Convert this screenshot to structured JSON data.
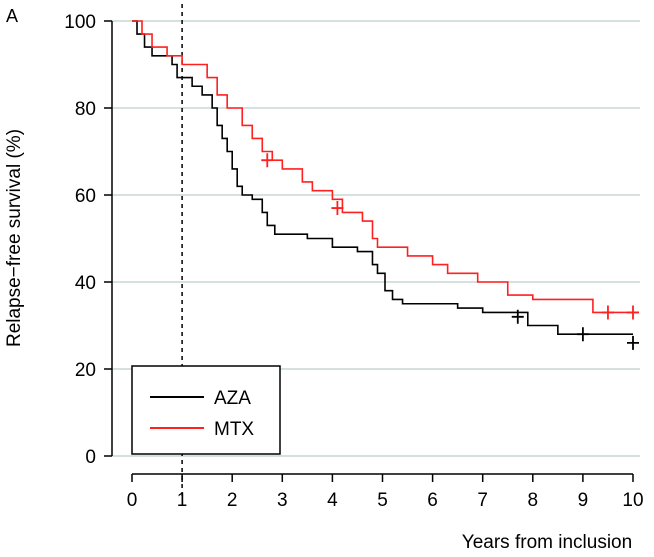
{
  "panel_letter": "A",
  "chart_data": {
    "type": "line",
    "step": true,
    "xlabel": "Years from inclusion",
    "ylabel": "Relapse−free survival (%)",
    "xlim": [
      0,
      10
    ],
    "ylim": [
      0,
      100
    ],
    "x_ticks": [
      0,
      1,
      2,
      3,
      4,
      5,
      6,
      7,
      8,
      9,
      10
    ],
    "y_ticks": [
      0,
      20,
      40,
      60,
      80,
      100
    ],
    "grid": "horizontal",
    "reference_line_x": 1,
    "legend_position": "bottom-left",
    "series": [
      {
        "name": "AZA",
        "color": "#000000",
        "points": [
          [
            0,
            100
          ],
          [
            0.1,
            97
          ],
          [
            0.25,
            94
          ],
          [
            0.4,
            92
          ],
          [
            0.8,
            90
          ],
          [
            0.9,
            87
          ],
          [
            1.2,
            85
          ],
          [
            1.4,
            83
          ],
          [
            1.6,
            80
          ],
          [
            1.7,
            76
          ],
          [
            1.8,
            73
          ],
          [
            1.9,
            70
          ],
          [
            2.0,
            66
          ],
          [
            2.1,
            62
          ],
          [
            2.2,
            60
          ],
          [
            2.4,
            59
          ],
          [
            2.6,
            56
          ],
          [
            2.7,
            53
          ],
          [
            2.85,
            51
          ],
          [
            3.5,
            50
          ],
          [
            4.0,
            48
          ],
          [
            4.5,
            47
          ],
          [
            4.8,
            44
          ],
          [
            4.9,
            42
          ],
          [
            5.05,
            38
          ],
          [
            5.2,
            36
          ],
          [
            5.4,
            35
          ],
          [
            6.5,
            34
          ],
          [
            7.0,
            33
          ],
          [
            7.9,
            30
          ],
          [
            8.5,
            28
          ],
          [
            10,
            28
          ]
        ],
        "censored": [
          [
            7.7,
            32
          ],
          [
            9.0,
            28
          ],
          [
            10,
            26
          ]
        ]
      },
      {
        "name": "MTX",
        "color": "#ff2020",
        "points": [
          [
            0,
            100
          ],
          [
            0.2,
            97
          ],
          [
            0.4,
            94
          ],
          [
            0.7,
            92
          ],
          [
            1.0,
            90
          ],
          [
            1.5,
            87
          ],
          [
            1.7,
            83
          ],
          [
            1.9,
            80
          ],
          [
            2.2,
            76
          ],
          [
            2.4,
            73
          ],
          [
            2.6,
            70
          ],
          [
            2.8,
            68
          ],
          [
            3.0,
            66
          ],
          [
            3.4,
            63
          ],
          [
            3.6,
            61
          ],
          [
            4.0,
            59
          ],
          [
            4.2,
            56
          ],
          [
            4.6,
            54
          ],
          [
            4.8,
            50
          ],
          [
            4.9,
            48
          ],
          [
            5.5,
            46
          ],
          [
            6.0,
            44
          ],
          [
            6.3,
            42
          ],
          [
            6.9,
            40
          ],
          [
            7.5,
            37
          ],
          [
            8.0,
            36
          ],
          [
            9.2,
            33
          ],
          [
            10,
            33
          ]
        ],
        "censored": [
          [
            2.7,
            68
          ],
          [
            4.1,
            57
          ],
          [
            9.5,
            33
          ],
          [
            10,
            33
          ]
        ]
      }
    ]
  }
}
